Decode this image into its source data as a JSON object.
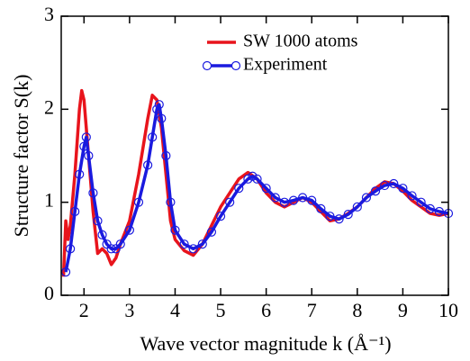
{
  "chart_data": {
    "type": "line",
    "xlabel": "Wave vector magnitude k (Å⁻¹)",
    "ylabel": "Structure factor S(k)",
    "xlim": [
      1.5,
      10
    ],
    "ylim": [
      0,
      3
    ],
    "xticks": [
      2,
      3,
      4,
      5,
      6,
      7,
      8,
      9,
      10
    ],
    "yticks": [
      0,
      1,
      2,
      3
    ],
    "legend": "upper right",
    "series": [
      {
        "name": "SW 1000 atoms",
        "color": "#e8141c",
        "marker": false,
        "x": [
          1.55,
          1.6,
          1.65,
          1.7,
          1.8,
          1.9,
          1.95,
          2.0,
          2.1,
          2.2,
          2.3,
          2.4,
          2.5,
          2.6,
          2.7,
          2.8,
          3.0,
          3.2,
          3.4,
          3.5,
          3.6,
          3.7,
          3.8,
          3.9,
          4.0,
          4.2,
          4.4,
          4.6,
          4.8,
          5.0,
          5.2,
          5.4,
          5.6,
          5.8,
          6.0,
          6.2,
          6.4,
          6.6,
          6.8,
          7.0,
          7.2,
          7.4,
          7.6,
          7.8,
          8.0,
          8.2,
          8.4,
          8.6,
          8.8,
          9.0,
          9.2,
          9.4,
          9.6,
          9.8,
          10.0
        ],
        "values": [
          0.2,
          0.8,
          0.6,
          0.75,
          1.3,
          2.0,
          2.2,
          2.1,
          1.5,
          0.9,
          0.45,
          0.5,
          0.45,
          0.33,
          0.4,
          0.55,
          0.8,
          1.3,
          1.9,
          2.15,
          2.1,
          1.8,
          1.3,
          0.8,
          0.6,
          0.48,
          0.43,
          0.55,
          0.75,
          0.95,
          1.1,
          1.25,
          1.32,
          1.25,
          1.1,
          1.0,
          0.95,
          1.0,
          1.05,
          1.0,
          0.9,
          0.8,
          0.82,
          0.88,
          0.95,
          1.05,
          1.15,
          1.22,
          1.2,
          1.12,
          1.02,
          0.95,
          0.88,
          0.86,
          0.88
        ]
      },
      {
        "name": "Experiment",
        "color": "#1a1adf",
        "marker": true,
        "x": [
          1.6,
          1.7,
          1.8,
          1.9,
          2.0,
          2.05,
          2.1,
          2.2,
          2.3,
          2.4,
          2.5,
          2.6,
          2.7,
          2.8,
          3.0,
          3.2,
          3.4,
          3.5,
          3.6,
          3.65,
          3.7,
          3.8,
          3.9,
          4.0,
          4.2,
          4.4,
          4.6,
          4.8,
          5.0,
          5.2,
          5.4,
          5.6,
          5.7,
          5.8,
          6.0,
          6.2,
          6.4,
          6.6,
          6.8,
          7.0,
          7.2,
          7.4,
          7.6,
          7.8,
          8.0,
          8.2,
          8.4,
          8.6,
          8.8,
          9.0,
          9.2,
          9.4,
          9.6,
          9.8,
          10.0
        ],
        "values": [
          0.25,
          0.5,
          0.9,
          1.3,
          1.6,
          1.7,
          1.5,
          1.1,
          0.8,
          0.65,
          0.55,
          0.5,
          0.5,
          0.55,
          0.7,
          1.0,
          1.4,
          1.7,
          2.0,
          2.05,
          1.9,
          1.5,
          1.0,
          0.7,
          0.55,
          0.5,
          0.55,
          0.68,
          0.85,
          1.0,
          1.15,
          1.25,
          1.28,
          1.25,
          1.15,
          1.05,
          1.0,
          1.02,
          1.05,
          1.02,
          0.93,
          0.85,
          0.82,
          0.87,
          0.95,
          1.05,
          1.12,
          1.18,
          1.2,
          1.15,
          1.07,
          1.0,
          0.93,
          0.9,
          0.88
        ]
      }
    ]
  }
}
